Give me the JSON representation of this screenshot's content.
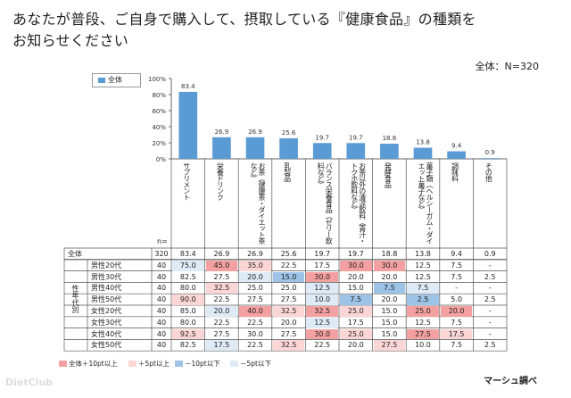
{
  "title_line1": "あなたが普段、ご自身で購入して、摂取している『健康食品』の種類を",
  "title_line2": "お知らせください",
  "total_label": "全体：N=320",
  "legend_label": "全体",
  "n_header": "n=",
  "source": "マーシュ調べ",
  "watermark": "DietClub",
  "footer_legend": [
    {
      "label": "全体＋10pt以上",
      "color": "#f4a0a0"
    },
    {
      "label": "＋5pt以上",
      "color": "#fcd5d5"
    },
    {
      "label": "－10pt以下",
      "color": "#9dc3e6"
    },
    {
      "label": "－5pt以下",
      "color": "#deebf7"
    }
  ],
  "side_label": "性年代別",
  "colors": {
    "bar": "#5b9bd5",
    "hi10": "#f4a0a0",
    "hi5": "#fcd5d5",
    "lo10": "#9dc3e6",
    "lo5": "#deebf7"
  },
  "chart_data": {
    "type": "bar",
    "categories": [
      "サプリメント",
      "栄養ドリンク",
      "お茶（健康茶、ダイエット茶など）",
      "乳製品",
      "バランス栄養食品（ゼリー飲料など）",
      "お茶以外の清涼飲料（青汁、トクホ飲料など）",
      "発酵食品",
      "菓子類（ヘルシーガム、ダイエット菓子など）",
      "調味料",
      "その他"
    ],
    "values": [
      83.4,
      26.9,
      26.9,
      25.6,
      19.7,
      19.7,
      18.8,
      13.8,
      9.4,
      0.9
    ],
    "value_labels": [
      "83.4",
      "26.9",
      "26.9",
      "25.6",
      "19.7",
      "19.7",
      "18.8",
      "13.8",
      "9.4",
      "0.9"
    ],
    "yticks": [
      "100%",
      "80%",
      "60%",
      "40%",
      "20%",
      "0%"
    ],
    "ylim": [
      0,
      100
    ]
  },
  "column_headers": [
    "サプリメント",
    "栄養ドリンク",
    "お茶（健康茶・ダイエット茶など）",
    "乳製品",
    "バランス栄養食品（ゼリー飲料など）",
    "お茶以外の清涼飲料（青汁・トクホ飲料など）",
    "発酵食品",
    "菓子類（ヘルシーガム・ダイエット菓子など）",
    "調味料",
    "その他"
  ],
  "table": {
    "rows": [
      {
        "label": "全体",
        "n": "320",
        "cells": [
          "83.4",
          "26.9",
          "26.9",
          "25.6",
          "19.7",
          "19.7",
          "18.8",
          "13.8",
          "9.4",
          "0.9"
        ],
        "marks": [
          "",
          "",
          "",
          "",
          "",
          "",
          "",
          "",
          "",
          ""
        ]
      },
      {
        "label": "男性20代",
        "n": "40",
        "cells": [
          "75.0",
          "45.0",
          "35.0",
          "22.5",
          "17.5",
          "30.0",
          "30.0",
          "12.5",
          "7.5",
          "-"
        ],
        "marks": [
          "lo5",
          "hi10",
          "hi5",
          "",
          "",
          "hi10",
          "hi10",
          "",
          "",
          ""
        ]
      },
      {
        "label": "男性30代",
        "n": "40",
        "cells": [
          "82.5",
          "27.5",
          "20.0",
          "15.0",
          "30.0",
          "20.0",
          "20.0",
          "12.5",
          "7.5",
          "2.5"
        ],
        "marks": [
          "",
          "",
          "lo5",
          "lo10",
          "hi10",
          "",
          "",
          "",
          "",
          ""
        ]
      },
      {
        "label": "男性40代",
        "n": "40",
        "cells": [
          "80.0",
          "32.5",
          "25.0",
          "25.0",
          "12.5",
          "15.0",
          "7.5",
          "7.5",
          "-",
          "-"
        ],
        "marks": [
          "",
          "hi5",
          "",
          "",
          "lo5",
          "",
          "lo10",
          "lo5",
          "",
          ""
        ]
      },
      {
        "label": "男性50代",
        "n": "40",
        "cells": [
          "90.0",
          "22.5",
          "27.5",
          "27.5",
          "10.0",
          "7.5",
          "20.0",
          "2.5",
          "5.0",
          "2.5"
        ],
        "marks": [
          "hi5",
          "",
          "",
          "",
          "lo5",
          "lo10",
          "",
          "lo10",
          "",
          ""
        ]
      },
      {
        "label": "女性20代",
        "n": "40",
        "cells": [
          "85.0",
          "20.0",
          "40.0",
          "32.5",
          "32.5",
          "25.0",
          "15.0",
          "25.0",
          "20.0",
          "-"
        ],
        "marks": [
          "",
          "lo5",
          "hi10",
          "hi5",
          "hi10",
          "hi5",
          "",
          "hi10",
          "hi10",
          ""
        ]
      },
      {
        "label": "女性30代",
        "n": "40",
        "cells": [
          "80.0",
          "22.5",
          "22.5",
          "20.0",
          "12.5",
          "17.5",
          "15.0",
          "12.5",
          "7.5",
          "-"
        ],
        "marks": [
          "",
          "",
          "",
          "",
          "lo5",
          "",
          "",
          "",
          "",
          ""
        ]
      },
      {
        "label": "女性40代",
        "n": "40",
        "cells": [
          "92.5",
          "27.5",
          "30.0",
          "27.5",
          "30.0",
          "25.0",
          "15.0",
          "27.5",
          "17.5",
          "-"
        ],
        "marks": [
          "hi5",
          "",
          "",
          "",
          "hi10",
          "hi5",
          "",
          "hi10",
          "hi5",
          ""
        ]
      },
      {
        "label": "女性50代",
        "n": "40",
        "cells": [
          "82.5",
          "17.5",
          "22.5",
          "32.5",
          "22.5",
          "20.0",
          "27.5",
          "10.0",
          "7.5",
          "2.5"
        ],
        "marks": [
          "",
          "lo5",
          "",
          "hi5",
          "",
          "",
          "hi5",
          "",
          "",
          ""
        ]
      }
    ]
  }
}
